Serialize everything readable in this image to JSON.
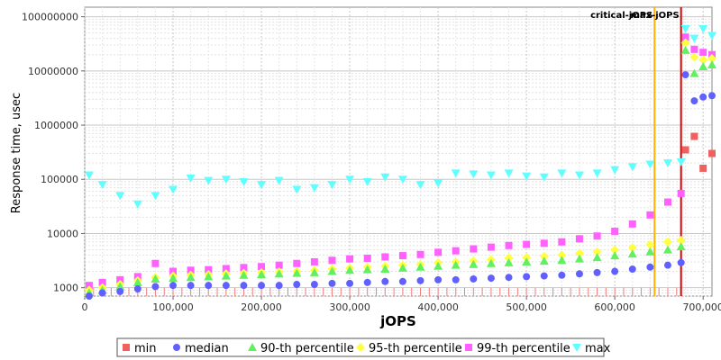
{
  "chart_data": {
    "type": "scatter",
    "xlabel": "jOPS",
    "ylabel": "Response time, usec",
    "xlim": [
      0,
      710000
    ],
    "ylim": [
      700,
      150000000
    ],
    "y_scale": "log",
    "grid": true,
    "legend_position": "bottom",
    "x_ticks": [
      {
        "value": 0,
        "label": "0"
      },
      {
        "value": 100000,
        "label": "100,000"
      },
      {
        "value": 200000,
        "label": "200,000"
      },
      {
        "value": 300000,
        "label": "300,000"
      },
      {
        "value": 400000,
        "label": "400,000"
      },
      {
        "value": 500000,
        "label": "500,000"
      },
      {
        "value": 600000,
        "label": "600,000"
      },
      {
        "value": 700000,
        "label": "700,000"
      }
    ],
    "y_ticks": [
      {
        "value": 1000,
        "label": "1000"
      },
      {
        "value": 10000,
        "label": "10000"
      },
      {
        "value": 100000,
        "label": "100000"
      },
      {
        "value": 1000000,
        "label": "1000000"
      },
      {
        "value": 10000000,
        "label": "10000000"
      },
      {
        "value": 100000000,
        "label": "100000000"
      }
    ],
    "annotations": [
      {
        "label": "critical-jOPS",
        "x": 645000,
        "color": "#ffb000"
      },
      {
        "label": "max-jOPS",
        "x": 675000,
        "color": "#e00000"
      }
    ],
    "series": [
      {
        "name": "min",
        "marker": "square",
        "color": "#f06060",
        "x": [
          680000,
          690000,
          700000,
          710000
        ],
        "y": [
          350000,
          620000,
          160000,
          300000
        ]
      },
      {
        "name": "median",
        "marker": "circle",
        "color": "#6060ff",
        "x": [
          5000,
          20000,
          40000,
          60000,
          80000,
          100000,
          120000,
          140000,
          160000,
          180000,
          200000,
          220000,
          240000,
          260000,
          280000,
          300000,
          320000,
          340000,
          360000,
          380000,
          400000,
          420000,
          440000,
          460000,
          480000,
          500000,
          520000,
          540000,
          560000,
          580000,
          600000,
          620000,
          640000,
          660000,
          675000,
          680000,
          690000,
          700000,
          710000
        ],
        "y": [
          700,
          800,
          850,
          950,
          1050,
          1100,
          1100,
          1100,
          1100,
          1100,
          1100,
          1100,
          1150,
          1150,
          1200,
          1200,
          1250,
          1300,
          1300,
          1350,
          1400,
          1400,
          1450,
          1500,
          1550,
          1600,
          1650,
          1700,
          1800,
          1900,
          2000,
          2200,
          2400,
          2600,
          2900,
          8500000,
          2800000,
          3300000,
          3500000
        ]
      },
      {
        "name": "90-th percentile",
        "marker": "triangle-up",
        "color": "#60f060",
        "x": [
          5000,
          20000,
          40000,
          60000,
          80000,
          100000,
          120000,
          140000,
          160000,
          180000,
          200000,
          220000,
          240000,
          260000,
          280000,
          300000,
          320000,
          340000,
          360000,
          380000,
          400000,
          420000,
          440000,
          460000,
          480000,
          500000,
          520000,
          540000,
          560000,
          580000,
          600000,
          620000,
          640000,
          660000,
          675000,
          680000,
          690000,
          700000,
          710000
        ],
        "y": [
          800,
          900,
          1050,
          1250,
          1450,
          1500,
          1550,
          1600,
          1650,
          1700,
          1750,
          1800,
          1850,
          1900,
          2000,
          2100,
          2150,
          2200,
          2300,
          2400,
          2500,
          2600,
          2700,
          2800,
          2900,
          3000,
          3100,
          3200,
          3400,
          3600,
          3900,
          4200,
          4600,
          5000,
          5700,
          24000000,
          9000000,
          12000000,
          13000000
        ]
      },
      {
        "name": "95-th percentile",
        "marker": "diamond",
        "color": "#ffff40",
        "x": [
          5000,
          20000,
          40000,
          60000,
          80000,
          100000,
          120000,
          140000,
          160000,
          180000,
          200000,
          220000,
          240000,
          260000,
          280000,
          300000,
          320000,
          340000,
          360000,
          380000,
          400000,
          420000,
          440000,
          460000,
          480000,
          500000,
          520000,
          540000,
          560000,
          580000,
          600000,
          620000,
          640000,
          660000,
          675000,
          680000,
          690000,
          700000,
          710000
        ],
        "y": [
          900,
          1000,
          1150,
          1350,
          1550,
          1650,
          1700,
          1750,
          1800,
          1850,
          1900,
          1950,
          2000,
          2100,
          2200,
          2300,
          2400,
          2500,
          2600,
          2700,
          2900,
          3000,
          3100,
          3300,
          3500,
          3600,
          3800,
          4000,
          4300,
          4600,
          5000,
          5500,
          6200,
          7000,
          7500,
          33000000,
          18000000,
          16000000,
          17000000
        ]
      },
      {
        "name": "99-th percentile",
        "marker": "square",
        "color": "#ff60ff",
        "x": [
          5000,
          20000,
          40000,
          60000,
          80000,
          100000,
          120000,
          140000,
          160000,
          180000,
          200000,
          220000,
          240000,
          260000,
          280000,
          300000,
          320000,
          340000,
          360000,
          380000,
          400000,
          420000,
          440000,
          460000,
          480000,
          500000,
          520000,
          540000,
          560000,
          580000,
          600000,
          620000,
          640000,
          660000,
          675000,
          680000,
          690000,
          700000,
          710000
        ],
        "y": [
          1100,
          1250,
          1400,
          1600,
          2800,
          2000,
          2100,
          2150,
          2250,
          2350,
          2450,
          2600,
          2800,
          3000,
          3200,
          3400,
          3500,
          3700,
          3900,
          4100,
          4500,
          4800,
          5200,
          5600,
          6000,
          6300,
          6600,
          7000,
          8000,
          9000,
          11000,
          15000,
          22000,
          38000,
          55000,
          42000000,
          25000000,
          22000000,
          20000000
        ]
      },
      {
        "name": "max",
        "marker": "triangle-down",
        "color": "#60ffff",
        "x": [
          5000,
          20000,
          40000,
          60000,
          80000,
          100000,
          120000,
          140000,
          160000,
          180000,
          200000,
          220000,
          240000,
          260000,
          280000,
          300000,
          320000,
          340000,
          360000,
          380000,
          400000,
          420000,
          440000,
          460000,
          480000,
          500000,
          520000,
          540000,
          560000,
          580000,
          600000,
          620000,
          640000,
          660000,
          675000,
          680000,
          690000,
          700000,
          710000
        ],
        "y": [
          120000,
          80000,
          50000,
          35000,
          50000,
          65000,
          105000,
          95000,
          100000,
          90000,
          80000,
          95000,
          65000,
          70000,
          80000,
          100000,
          90000,
          110000,
          100000,
          80000,
          85000,
          130000,
          125000,
          120000,
          130000,
          115000,
          110000,
          130000,
          120000,
          130000,
          150000,
          170000,
          190000,
          200000,
          210000,
          60000000,
          40000000,
          60000000,
          45000000
        ]
      }
    ]
  }
}
